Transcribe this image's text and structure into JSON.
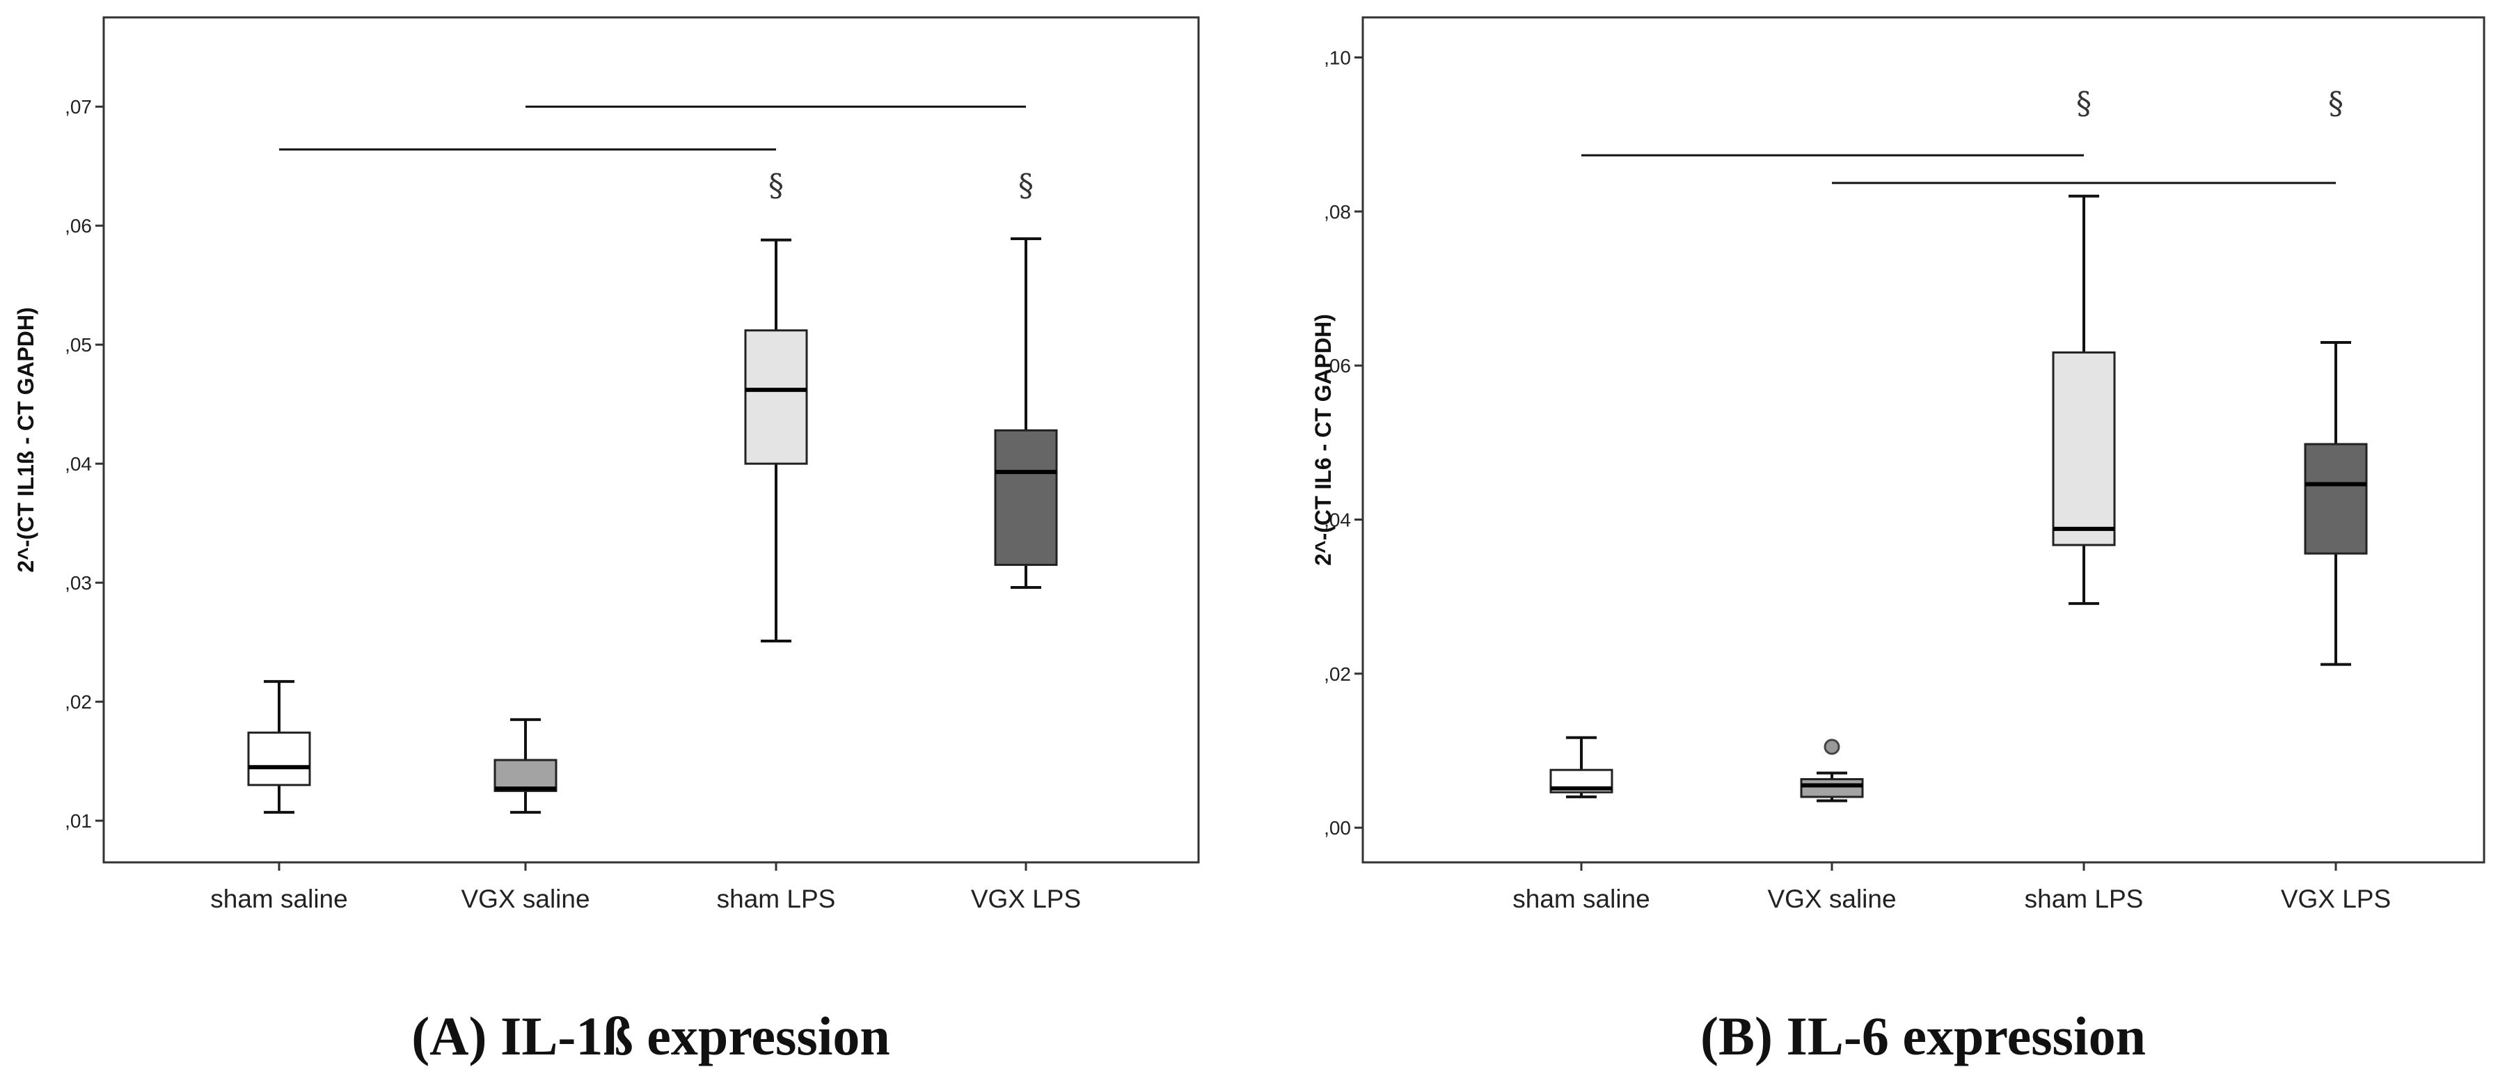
{
  "chart_data": [
    {
      "type": "boxplot",
      "caption": "(A) IL-1ß expression",
      "ylabel": "2^-(CT IL1ß - CT GAPDH)",
      "ylim": [
        0.0065,
        0.0775
      ],
      "yticks": [
        0.01,
        0.02,
        0.03,
        0.04,
        0.05,
        0.06,
        0.07
      ],
      "ytick_labels": [
        ",01",
        ",02",
        ",03",
        ",04",
        ",05",
        ",06",
        ",07"
      ],
      "categories": [
        "sham saline",
        "VGX saline",
        "sham LPS",
        "VGX LPS"
      ],
      "box_colors": [
        "#ffffff",
        "#a3a3a3",
        "#e4e4e4",
        "#666666"
      ],
      "boxes": [
        {
          "min": 0.0107,
          "q1": 0.013,
          "median": 0.0145,
          "q3": 0.0174,
          "max": 0.0217
        },
        {
          "min": 0.0107,
          "q1": 0.0125,
          "median": 0.0127,
          "q3": 0.0151,
          "max": 0.0185
        },
        {
          "min": 0.0251,
          "q1": 0.04,
          "median": 0.0462,
          "q3": 0.0512,
          "max": 0.0588
        },
        {
          "min": 0.0296,
          "q1": 0.0315,
          "median": 0.0393,
          "q3": 0.0428,
          "max": 0.0589
        }
      ],
      "outliers": [],
      "brackets": [
        {
          "from": 0,
          "to": 2,
          "y": 0.0664
        },
        {
          "from": 1,
          "to": 3,
          "y": 0.07
        }
      ],
      "symbols": [
        {
          "category": 2,
          "label": "§",
          "y": 0.0625
        },
        {
          "category": 3,
          "label": "§",
          "y": 0.0625
        }
      ]
    },
    {
      "type": "boxplot",
      "caption": "(B) IL-6 expression",
      "ylabel": "2^-(CT IL6 - CT GAPDH)",
      "ylim": [
        -0.0045,
        0.1052
      ],
      "yticks": [
        0.0,
        0.02,
        0.04,
        0.06,
        0.08,
        0.1
      ],
      "ytick_labels": [
        ",00",
        ",02",
        ",04",
        ",06",
        ",08",
        ",10"
      ],
      "categories": [
        "sham saline",
        "VGX saline",
        "sham LPS",
        "VGX LPS"
      ],
      "box_colors": [
        "#ffffff",
        "#a3a3a3",
        "#e4e4e4",
        "#666666"
      ],
      "boxes": [
        {
          "min": 0.004,
          "q1": 0.0046,
          "median": 0.0051,
          "q3": 0.0075,
          "max": 0.0117
        },
        {
          "min": 0.0035,
          "q1": 0.004,
          "median": 0.0055,
          "q3": 0.0063,
          "max": 0.0071
        },
        {
          "min": 0.0291,
          "q1": 0.0367,
          "median": 0.0388,
          "q3": 0.0617,
          "max": 0.082
        },
        {
          "min": 0.0212,
          "q1": 0.0356,
          "median": 0.0446,
          "q3": 0.0498,
          "max": 0.063
        }
      ],
      "outliers": [
        {
          "category": 1,
          "value": 0.0105
        }
      ],
      "brackets": [
        {
          "from": 0,
          "to": 2,
          "y": 0.0873
        },
        {
          "from": 1,
          "to": 3,
          "y": 0.0837
        }
      ],
      "symbols": [
        {
          "category": 2,
          "label": "§",
          "y": 0.0927
        },
        {
          "category": 3,
          "label": "§",
          "y": 0.0927
        }
      ]
    }
  ]
}
